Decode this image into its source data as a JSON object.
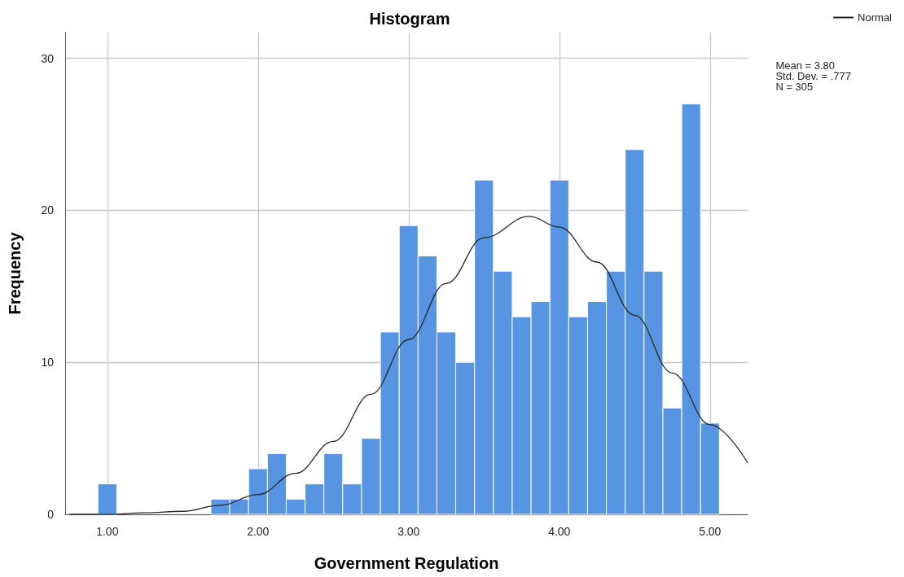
{
  "chart_data": {
    "type": "histogram",
    "title": "Histogram",
    "xlabel": "Government Regulation",
    "ylabel": "Frequency",
    "bins": [
      0.9375,
      1.0625,
      1.1875,
      1.3125,
      1.4375,
      1.5625,
      1.6875,
      1.8125,
      1.9375,
      2.0625,
      2.1875,
      2.3125,
      2.4375,
      2.5625,
      2.6875,
      2.8125,
      2.9375,
      3.0625,
      3.1875,
      3.3125,
      3.4375,
      3.5625,
      3.6875,
      3.8125,
      3.9375,
      4.0625,
      4.1875,
      4.3125,
      4.4375,
      4.5625,
      4.6875,
      4.8125,
      4.9375,
      5.0625
    ],
    "values": [
      2,
      0,
      0,
      0,
      0,
      0,
      1,
      1,
      3,
      4,
      1,
      2,
      4,
      2,
      5,
      12,
      19,
      17,
      12,
      10,
      22,
      16,
      13,
      14,
      22,
      13,
      14,
      16,
      24,
      16,
      7,
      27,
      6
    ],
    "color": "#5794e2",
    "series": [
      {
        "name": "Normal",
        "type": "line",
        "color": "#262626",
        "x": [
          0.75,
          1.0,
          1.25,
          1.5,
          1.75,
          2.0,
          2.25,
          2.5,
          2.75,
          3.0,
          3.25,
          3.5,
          3.8,
          4.0,
          4.25,
          4.5,
          4.75,
          5.0,
          5.25
        ],
        "values": [
          0.0,
          0.0,
          0.1,
          0.2,
          0.6,
          1.3,
          2.7,
          4.8,
          7.9,
          11.5,
          15.2,
          18.2,
          19.6,
          18.9,
          16.6,
          13.1,
          9.3,
          5.9,
          3.4
        ]
      }
    ],
    "annotations": [
      "Mean = 3.80",
      "Std. Dev. = .777",
      "N = 305"
    ],
    "xlim": [
      0.72,
      5.25
    ],
    "xticks": [
      {
        "value": 1,
        "label": "1.00"
      },
      {
        "value": 2,
        "label": "2.00"
      },
      {
        "value": 3,
        "label": "3.00"
      },
      {
        "value": 4,
        "label": "4.00"
      },
      {
        "value": 5,
        "label": "5.00"
      }
    ],
    "ylim": [
      0,
      31.7
    ],
    "yticks": [
      0,
      10,
      20,
      30
    ],
    "grid": true,
    "legend": "top right",
    "line_style": "solid",
    "marker": "none"
  }
}
